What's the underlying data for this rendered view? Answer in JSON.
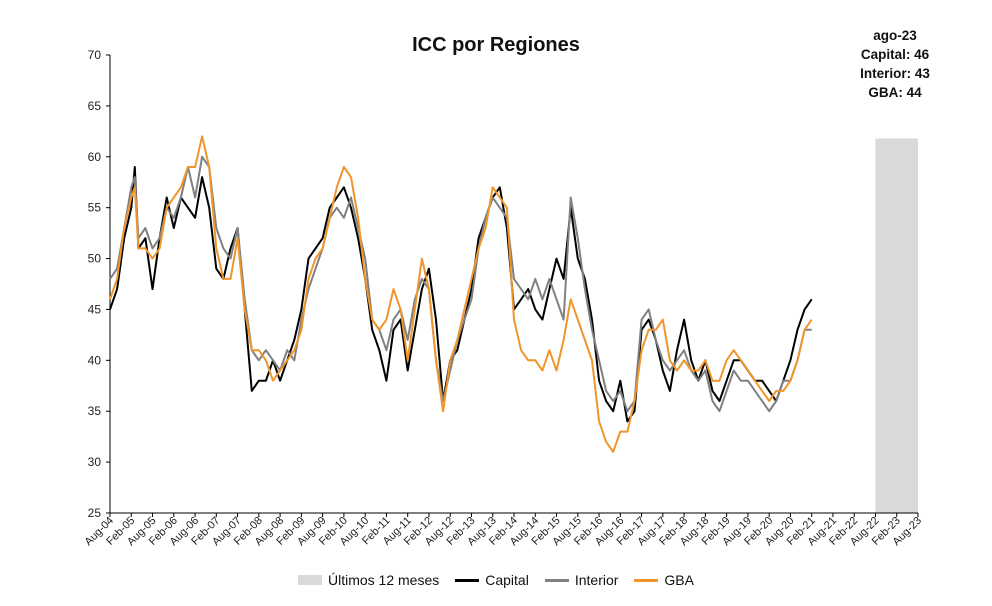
{
  "chart_data": {
    "type": "line",
    "title": "ICC por Regiones",
    "xlabel": "",
    "ylabel": "",
    "ylim": [
      25,
      70
    ],
    "yticks": [
      25,
      30,
      35,
      40,
      45,
      50,
      55,
      60,
      65,
      70
    ],
    "x_tick_labels": [
      "Aug-04",
      "Feb-05",
      "Aug-05",
      "Feb-06",
      "Aug-06",
      "Feb-07",
      "Aug-07",
      "Feb-08",
      "Aug-08",
      "Feb-09",
      "Aug-09",
      "Feb-10",
      "Aug-10",
      "Feb-11",
      "Aug-11",
      "Feb-12",
      "Aug-12",
      "Feb-13",
      "Aug-13",
      "Feb-14",
      "Aug-14",
      "Feb-15",
      "Aug-15",
      "Feb-16",
      "Aug-16",
      "Feb-17",
      "Aug-17",
      "Feb-18",
      "Aug-18",
      "Feb-19",
      "Aug-19",
      "Feb-20",
      "Aug-20",
      "Feb-21",
      "Aug-21",
      "Feb-22",
      "Aug-22",
      "Feb-23",
      "Aug-23"
    ],
    "x_start": "2004-08",
    "x_end": "2023-08",
    "frequency": "monthly",
    "shaded_region": {
      "label": "Últimos 12 meses",
      "from": "2022-08",
      "to": "2023-08",
      "color": "#d9d9d9"
    },
    "annotation": [
      "ago-23",
      "Capital: 46",
      "Interior: 43",
      "GBA: 44"
    ],
    "grid": false,
    "legend_position": "bottom",
    "series": [
      {
        "name": "Capital",
        "color": "#000000",
        "anchors": [
          [
            0,
            45
          ],
          [
            2,
            47
          ],
          [
            4,
            52
          ],
          [
            6,
            55
          ],
          [
            7,
            59
          ],
          [
            8,
            51
          ],
          [
            10,
            52
          ],
          [
            12,
            47
          ],
          [
            14,
            52
          ],
          [
            16,
            56
          ],
          [
            18,
            53
          ],
          [
            20,
            56
          ],
          [
            22,
            55
          ],
          [
            24,
            54
          ],
          [
            26,
            58
          ],
          [
            28,
            55
          ],
          [
            30,
            49
          ],
          [
            32,
            48
          ],
          [
            34,
            51
          ],
          [
            36,
            53
          ],
          [
            38,
            45
          ],
          [
            40,
            37
          ],
          [
            42,
            38
          ],
          [
            44,
            38
          ],
          [
            46,
            40
          ],
          [
            48,
            38
          ],
          [
            50,
            40
          ],
          [
            52,
            42
          ],
          [
            54,
            45
          ],
          [
            56,
            50
          ],
          [
            58,
            51
          ],
          [
            60,
            52
          ],
          [
            62,
            55
          ],
          [
            64,
            56
          ],
          [
            66,
            57
          ],
          [
            68,
            55
          ],
          [
            70,
            52
          ],
          [
            72,
            48
          ],
          [
            74,
            43
          ],
          [
            76,
            41
          ],
          [
            78,
            38
          ],
          [
            80,
            43
          ],
          [
            82,
            44
          ],
          [
            84,
            39
          ],
          [
            86,
            43
          ],
          [
            88,
            47
          ],
          [
            90,
            49
          ],
          [
            92,
            44
          ],
          [
            94,
            36
          ],
          [
            96,
            40
          ],
          [
            98,
            41
          ],
          [
            100,
            44
          ],
          [
            102,
            47
          ],
          [
            104,
            52
          ],
          [
            106,
            54
          ],
          [
            108,
            56
          ],
          [
            110,
            57
          ],
          [
            112,
            53
          ],
          [
            114,
            45
          ],
          [
            116,
            46
          ],
          [
            118,
            47
          ],
          [
            120,
            45
          ],
          [
            122,
            44
          ],
          [
            124,
            47
          ],
          [
            126,
            50
          ],
          [
            128,
            48
          ],
          [
            130,
            55
          ],
          [
            132,
            50
          ],
          [
            134,
            48
          ],
          [
            136,
            44
          ],
          [
            138,
            38
          ],
          [
            140,
            36
          ],
          [
            142,
            35
          ],
          [
            144,
            38
          ],
          [
            146,
            34
          ],
          [
            148,
            35
          ],
          [
            150,
            43
          ],
          [
            152,
            44
          ],
          [
            154,
            42
          ],
          [
            156,
            39
          ],
          [
            158,
            37
          ],
          [
            160,
            41
          ],
          [
            162,
            44
          ],
          [
            164,
            40
          ],
          [
            166,
            38
          ],
          [
            168,
            40
          ],
          [
            170,
            37
          ],
          [
            172,
            36
          ],
          [
            174,
            38
          ],
          [
            176,
            40
          ],
          [
            178,
            40
          ],
          [
            180,
            39
          ],
          [
            182,
            38
          ],
          [
            184,
            38
          ],
          [
            186,
            37
          ],
          [
            188,
            36
          ],
          [
            190,
            38
          ],
          [
            192,
            40
          ],
          [
            194,
            43
          ],
          [
            196,
            45
          ],
          [
            198,
            46
          ]
        ]
      },
      {
        "name": "Interior",
        "color": "#808080",
        "anchors": [
          [
            0,
            48
          ],
          [
            2,
            49
          ],
          [
            4,
            53
          ],
          [
            6,
            57
          ],
          [
            7,
            58
          ],
          [
            8,
            52
          ],
          [
            10,
            53
          ],
          [
            12,
            51
          ],
          [
            14,
            52
          ],
          [
            16,
            55
          ],
          [
            18,
            54
          ],
          [
            20,
            56
          ],
          [
            22,
            59
          ],
          [
            24,
            56
          ],
          [
            26,
            60
          ],
          [
            28,
            59
          ],
          [
            30,
            53
          ],
          [
            32,
            51
          ],
          [
            34,
            50
          ],
          [
            36,
            53
          ],
          [
            38,
            46
          ],
          [
            40,
            41
          ],
          [
            42,
            40
          ],
          [
            44,
            41
          ],
          [
            46,
            40
          ],
          [
            48,
            39
          ],
          [
            50,
            41
          ],
          [
            52,
            40
          ],
          [
            54,
            44
          ],
          [
            56,
            47
          ],
          [
            58,
            49
          ],
          [
            60,
            51
          ],
          [
            62,
            54
          ],
          [
            64,
            55
          ],
          [
            66,
            54
          ],
          [
            68,
            56
          ],
          [
            70,
            53
          ],
          [
            72,
            50
          ],
          [
            74,
            44
          ],
          [
            76,
            43
          ],
          [
            78,
            41
          ],
          [
            80,
            44
          ],
          [
            82,
            45
          ],
          [
            84,
            42
          ],
          [
            86,
            46
          ],
          [
            88,
            48
          ],
          [
            90,
            47
          ],
          [
            92,
            40
          ],
          [
            94,
            36
          ],
          [
            96,
            39
          ],
          [
            98,
            42
          ],
          [
            100,
            44
          ],
          [
            102,
            46
          ],
          [
            104,
            51
          ],
          [
            106,
            54
          ],
          [
            108,
            56
          ],
          [
            110,
            55
          ],
          [
            112,
            54
          ],
          [
            114,
            48
          ],
          [
            116,
            47
          ],
          [
            118,
            46
          ],
          [
            120,
            48
          ],
          [
            122,
            46
          ],
          [
            124,
            48
          ],
          [
            126,
            46
          ],
          [
            128,
            44
          ],
          [
            130,
            56
          ],
          [
            132,
            52
          ],
          [
            134,
            47
          ],
          [
            136,
            43
          ],
          [
            138,
            40
          ],
          [
            140,
            37
          ],
          [
            142,
            36
          ],
          [
            144,
            37
          ],
          [
            146,
            35
          ],
          [
            148,
            36
          ],
          [
            150,
            44
          ],
          [
            152,
            45
          ],
          [
            154,
            42
          ],
          [
            156,
            40
          ],
          [
            158,
            39
          ],
          [
            160,
            40
          ],
          [
            162,
            41
          ],
          [
            164,
            39
          ],
          [
            166,
            38
          ],
          [
            168,
            39
          ],
          [
            170,
            36
          ],
          [
            172,
            35
          ],
          [
            174,
            37
          ],
          [
            176,
            39
          ],
          [
            178,
            38
          ],
          [
            180,
            38
          ],
          [
            182,
            37
          ],
          [
            184,
            36
          ],
          [
            186,
            35
          ],
          [
            188,
            36
          ],
          [
            190,
            38
          ],
          [
            192,
            38
          ],
          [
            194,
            40
          ],
          [
            196,
            43
          ],
          [
            198,
            43
          ]
        ]
      },
      {
        "name": "GBA",
        "color": "#f0952b",
        "anchors": [
          [
            0,
            46
          ],
          [
            2,
            48
          ],
          [
            4,
            53
          ],
          [
            6,
            56
          ],
          [
            7,
            57
          ],
          [
            8,
            51
          ],
          [
            10,
            51
          ],
          [
            12,
            50
          ],
          [
            14,
            51
          ],
          [
            16,
            55
          ],
          [
            18,
            56
          ],
          [
            20,
            57
          ],
          [
            22,
            59
          ],
          [
            24,
            59
          ],
          [
            26,
            62
          ],
          [
            28,
            59
          ],
          [
            30,
            51
          ],
          [
            32,
            48
          ],
          [
            34,
            48
          ],
          [
            36,
            52
          ],
          [
            38,
            45
          ],
          [
            40,
            41
          ],
          [
            42,
            41
          ],
          [
            44,
            40
          ],
          [
            46,
            38
          ],
          [
            48,
            39
          ],
          [
            50,
            40
          ],
          [
            52,
            41
          ],
          [
            54,
            43
          ],
          [
            56,
            48
          ],
          [
            58,
            50
          ],
          [
            60,
            51
          ],
          [
            62,
            54
          ],
          [
            64,
            57
          ],
          [
            66,
            59
          ],
          [
            68,
            58
          ],
          [
            70,
            54
          ],
          [
            72,
            48
          ],
          [
            74,
            44
          ],
          [
            76,
            43
          ],
          [
            78,
            44
          ],
          [
            80,
            47
          ],
          [
            82,
            45
          ],
          [
            84,
            40
          ],
          [
            86,
            45
          ],
          [
            88,
            50
          ],
          [
            90,
            47
          ],
          [
            92,
            40
          ],
          [
            94,
            35
          ],
          [
            96,
            40
          ],
          [
            98,
            42
          ],
          [
            100,
            45
          ],
          [
            102,
            48
          ],
          [
            104,
            51
          ],
          [
            106,
            53
          ],
          [
            108,
            57
          ],
          [
            110,
            56
          ],
          [
            112,
            55
          ],
          [
            114,
            44
          ],
          [
            116,
            41
          ],
          [
            118,
            40
          ],
          [
            120,
            40
          ],
          [
            122,
            39
          ],
          [
            124,
            41
          ],
          [
            126,
            39
          ],
          [
            128,
            42
          ],
          [
            130,
            46
          ],
          [
            132,
            44
          ],
          [
            134,
            42
          ],
          [
            136,
            40
          ],
          [
            138,
            34
          ],
          [
            140,
            32
          ],
          [
            142,
            31
          ],
          [
            144,
            33
          ],
          [
            146,
            33
          ],
          [
            148,
            36
          ],
          [
            150,
            41
          ],
          [
            152,
            43
          ],
          [
            154,
            43
          ],
          [
            156,
            44
          ],
          [
            158,
            40
          ],
          [
            160,
            39
          ],
          [
            162,
            40
          ],
          [
            164,
            39
          ],
          [
            166,
            39
          ],
          [
            168,
            40
          ],
          [
            170,
            38
          ],
          [
            172,
            38
          ],
          [
            174,
            40
          ],
          [
            176,
            41
          ],
          [
            178,
            40
          ],
          [
            180,
            39
          ],
          [
            182,
            38
          ],
          [
            184,
            37
          ],
          [
            186,
            36
          ],
          [
            188,
            37
          ],
          [
            190,
            37
          ],
          [
            192,
            38
          ],
          [
            194,
            40
          ],
          [
            196,
            43
          ],
          [
            198,
            44
          ]
        ]
      }
    ]
  }
}
